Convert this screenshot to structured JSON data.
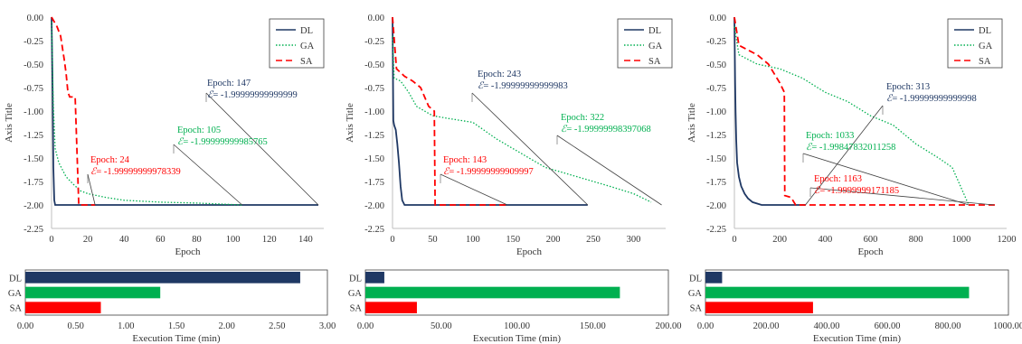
{
  "chart_data": [
    {
      "type": "line",
      "xlabel": "Epoch",
      "ylabel": "Axis Title",
      "xlim": [
        0,
        150
      ],
      "xticks": [
        0,
        20,
        40,
        60,
        80,
        100,
        120,
        140
      ],
      "ylim": [
        -2.25,
        0
      ],
      "yticks": [
        "0.00",
        "-0.25",
        "-0.50",
        "-0.75",
        "-1.00",
        "-1.25",
        "-1.50",
        "-1.75",
        "-2.00",
        "-2.25"
      ],
      "legend_position": "top-right",
      "series": [
        {
          "name": "DL",
          "color": "#1f3864",
          "style": "solid",
          "x": [
            0,
            0.6,
            1,
            1.5,
            2,
            147
          ],
          "y": [
            0,
            -0.8,
            -1.6,
            -1.95,
            -2.0,
            -2.0
          ]
        },
        {
          "name": "GA",
          "color": "#00b050",
          "style": "dotted",
          "x": [
            0,
            1,
            2,
            4,
            8,
            12,
            16,
            20,
            30,
            40,
            60,
            80,
            105
          ],
          "y": [
            -0.05,
            -0.95,
            -1.4,
            -1.55,
            -1.7,
            -1.78,
            -1.85,
            -1.88,
            -1.92,
            -1.95,
            -1.97,
            -1.98,
            -2.0
          ]
        },
        {
          "name": "SA",
          "color": "#ff0000",
          "style": "dashed",
          "x": [
            0,
            3,
            5,
            7,
            8,
            9,
            10,
            13,
            15,
            16,
            24
          ],
          "y": [
            0,
            -0.1,
            -0.2,
            -0.45,
            -0.6,
            -0.8,
            -0.85,
            -0.85,
            -2.0,
            -2.0,
            -2.0
          ]
        }
      ],
      "annotations": [
        {
          "series": "DL",
          "epoch_text": "Epoch: 147",
          "value_text": "= -1.99999999999999",
          "color": "#1f3864",
          "at_x": 147
        },
        {
          "series": "GA",
          "epoch_text": "Epoch: 105",
          "value_text": "= -1.99999999985765",
          "color": "#00b050",
          "at_x": 105
        },
        {
          "series": "SA",
          "epoch_text": "Epoch: 24",
          "value_text": "= -1.99999999978339",
          "color": "#ff0000",
          "at_x": 24
        }
      ]
    },
    {
      "type": "line",
      "xlabel": "Epoch",
      "ylabel": "Axis Title",
      "xlim": [
        0,
        340
      ],
      "xticks": [
        0,
        50,
        100,
        150,
        200,
        250,
        300
      ],
      "ylim": [
        -2.25,
        0
      ],
      "yticks": [
        "0.00",
        "-0.25",
        "-0.50",
        "-0.75",
        "-1.00",
        "-1.25",
        "-1.50",
        "-1.75",
        "-2.00",
        "-2.25"
      ],
      "legend_position": "top-right",
      "series": [
        {
          "name": "DL",
          "color": "#1f3864",
          "style": "solid",
          "x": [
            0,
            1,
            2,
            4,
            6,
            8,
            10,
            12,
            15,
            20,
            243
          ],
          "y": [
            0,
            -1.1,
            -1.15,
            -1.2,
            -1.35,
            -1.55,
            -1.8,
            -1.95,
            -2.0,
            -2.0,
            -2.0
          ]
        },
        {
          "name": "GA",
          "color": "#00b050",
          "style": "dotted",
          "x": [
            0,
            2,
            10,
            20,
            30,
            50,
            70,
            100,
            130,
            160,
            190,
            230,
            270,
            300,
            322
          ],
          "y": [
            -0.2,
            -0.65,
            -0.68,
            -0.8,
            -0.95,
            -1.05,
            -1.08,
            -1.12,
            -1.3,
            -1.45,
            -1.6,
            -1.7,
            -1.8,
            -1.88,
            -1.97
          ]
        },
        {
          "name": "SA",
          "color": "#ff0000",
          "style": "dashed",
          "x": [
            0,
            5,
            15,
            25,
            35,
            40,
            45,
            52,
            53,
            60,
            143
          ],
          "y": [
            0,
            -0.55,
            -0.63,
            -0.68,
            -0.75,
            -0.85,
            -0.95,
            -1.0,
            -2.0,
            -2.0,
            -2.0
          ]
        }
      ],
      "annotations": [
        {
          "series": "DL",
          "epoch_text": "Epoch: 243",
          "value_text": "= -1.99999999999983",
          "color": "#1f3864",
          "at_x": 243
        },
        {
          "series": "GA",
          "epoch_text": "Epoch: 322",
          "value_text": "= -1.99999998397068",
          "color": "#00b050",
          "at_x": 335
        },
        {
          "series": "SA",
          "epoch_text": "Epoch: 143",
          "value_text": "= -1.99999999909997",
          "color": "#ff0000",
          "at_x": 143
        }
      ]
    },
    {
      "type": "line",
      "xlabel": "Epoch",
      "ylabel": "Axis Title",
      "xlim": [
        0,
        1200
      ],
      "xticks": [
        0,
        200,
        400,
        600,
        800,
        1000,
        1200
      ],
      "ylim": [
        -2.25,
        0
      ],
      "yticks": [
        "0.00",
        "-0.25",
        "-0.50",
        "-0.75",
        "-1.00",
        "-1.25",
        "-1.50",
        "-1.75",
        "-2.00",
        "-2.25"
      ],
      "legend_position": "top-right",
      "series": [
        {
          "name": "DL",
          "color": "#1f3864",
          "style": "solid",
          "x": [
            0,
            3,
            5,
            8,
            12,
            20,
            30,
            45,
            60,
            80,
            120,
            313
          ],
          "y": [
            0,
            -0.7,
            -1.0,
            -1.3,
            -1.55,
            -1.7,
            -1.8,
            -1.88,
            -1.93,
            -1.97,
            -2.0,
            -2.0
          ]
        },
        {
          "name": "GA",
          "color": "#00b050",
          "style": "dotted",
          "x": [
            0,
            20,
            100,
            200,
            300,
            400,
            500,
            600,
            700,
            800,
            900,
            960,
            1033
          ],
          "y": [
            -0.1,
            -0.4,
            -0.5,
            -0.55,
            -0.65,
            -0.8,
            -0.9,
            -1.05,
            -1.15,
            -1.35,
            -1.5,
            -1.6,
            -2.0
          ]
        },
        {
          "name": "SA",
          "color": "#ff0000",
          "style": "dashed",
          "x": [
            0,
            20,
            100,
            150,
            200,
            220,
            222,
            250,
            270,
            300,
            1163
          ],
          "y": [
            0,
            -0.3,
            -0.4,
            -0.5,
            -0.7,
            -0.8,
            -1.9,
            -1.92,
            -2.0,
            -2.0,
            -2.0
          ]
        }
      ],
      "annotations": [
        {
          "series": "DL",
          "epoch_text": "Epoch: 313",
          "value_text": "= -1.99999999999998",
          "color": "#1f3864",
          "at_x": 313
        },
        {
          "series": "GA",
          "epoch_text": "Epoch: 1033",
          "value_text": "= -1.99847832011258",
          "color": "#00b050",
          "at_x": 1033
        },
        {
          "series": "SA",
          "epoch_text": "Epoch: 1163",
          "value_text": "= -1.9999999171185",
          "color": "#ff0000",
          "at_x": 1145
        }
      ]
    },
    {
      "type": "bar",
      "orientation": "horizontal",
      "categories": [
        "DL",
        "GA",
        "SA"
      ],
      "values": [
        2.73,
        1.34,
        0.75
      ],
      "colors": [
        "#1f3864",
        "#00b050",
        "#ff0000"
      ],
      "xlabel": "Execution Time (min)",
      "xlim": [
        0,
        3
      ],
      "xticks": [
        "0.00",
        "0.50",
        "1.00",
        "1.50",
        "2.00",
        "2.50",
        "3.00"
      ]
    },
    {
      "type": "bar",
      "orientation": "horizontal",
      "categories": [
        "DL",
        "GA",
        "SA"
      ],
      "values": [
        12.5,
        168.0,
        34.0
      ],
      "colors": [
        "#1f3864",
        "#00b050",
        "#ff0000"
      ],
      "xlabel": "Execution Time (min)",
      "xlim": [
        0,
        200
      ],
      "xticks": [
        "0.00",
        "50.00",
        "100.00",
        "150.00",
        "200.00"
      ]
    },
    {
      "type": "bar",
      "orientation": "horizontal",
      "categories": [
        "DL",
        "GA",
        "SA"
      ],
      "values": [
        55,
        870,
        355
      ],
      "colors": [
        "#1f3864",
        "#00b050",
        "#ff0000"
      ],
      "xlabel": "Execution Time (min)",
      "xlim": [
        0,
        1000
      ],
      "xticks": [
        "0.00",
        "200.00",
        "400.00",
        "600.00",
        "800.00",
        "1000.00"
      ]
    }
  ],
  "epsilon_symbol": "ℰ"
}
